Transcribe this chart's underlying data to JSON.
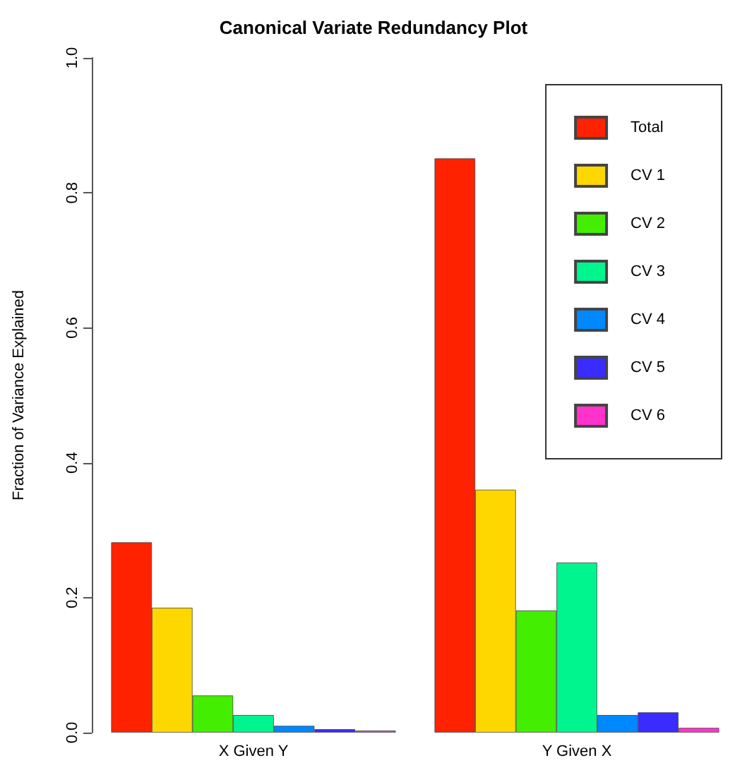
{
  "chart_data": {
    "type": "bar",
    "title": "Canonical Variate Redundancy Plot",
    "ylabel": "Fraction of Variance Explained",
    "categories": [
      "X Given Y",
      "Y Given X"
    ],
    "series": [
      {
        "name": "Total",
        "color": "#ff2200",
        "values": [
          0.282,
          0.851
        ]
      },
      {
        "name": "CV 1",
        "color": "#ffd700",
        "values": [
          0.185,
          0.36
        ]
      },
      {
        "name": "CV 2",
        "color": "#44ee00",
        "values": [
          0.055,
          0.181
        ]
      },
      {
        "name": "CV 3",
        "color": "#00f58f",
        "values": [
          0.026,
          0.252
        ]
      },
      {
        "name": "CV 4",
        "color": "#0088ff",
        "values": [
          0.01,
          0.026
        ]
      },
      {
        "name": "CV 5",
        "color": "#3a2bff",
        "values": [
          0.005,
          0.03
        ]
      },
      {
        "name": "CV 6",
        "color": "#ff33cc",
        "values": [
          0.003,
          0.007
        ]
      }
    ],
    "ylim": [
      0,
      1
    ],
    "yticks": [
      {
        "value": 0,
        "label": "0.0"
      },
      {
        "value": 0.2,
        "label": "0.2"
      },
      {
        "value": 0.4,
        "label": "0.4"
      },
      {
        "value": 0.6,
        "label": "0.6"
      },
      {
        "value": 0.8,
        "label": "0.8"
      },
      {
        "value": 1,
        "label": "1.0"
      }
    ],
    "grid": false,
    "legend": "top right"
  }
}
